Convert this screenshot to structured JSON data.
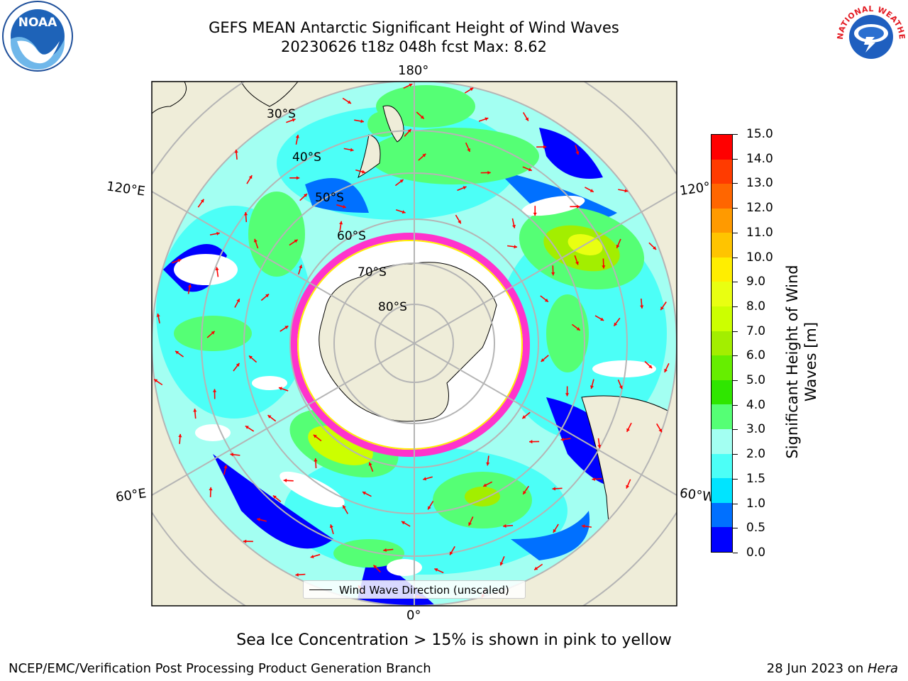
{
  "title_line1": "GEFS MEAN Antarctic Significant Height of Wind Waves",
  "title_line2": "20230626 t18z 048h fcst   Max: 8.62",
  "map": {
    "longitude_labels": {
      "top": "180°",
      "bottom": "0°",
      "upper_left": "120°E",
      "upper_right": "120°",
      "lower_left": "60°E",
      "lower_right": "60°W"
    },
    "latitude_labels": [
      "30°S",
      "40°S",
      "50°S",
      "60°S",
      "70°S",
      "80°S"
    ],
    "colors": {
      "land": "#efedd9",
      "ice_edge": "#ff33cc",
      "arrow": "#ff0000",
      "grid": "#b5b5b5"
    }
  },
  "legend": {
    "label": "Wind Wave Direction (unscaled)"
  },
  "colorbar": {
    "ticks": [
      "0.0",
      "0.5",
      "1.0",
      "1.5",
      "2.0",
      "3.0",
      "4.0",
      "5.0",
      "6.0",
      "7.0",
      "8.0",
      "9.0",
      "10.0",
      "11.0",
      "12.0",
      "13.0",
      "14.0",
      "15.0"
    ],
    "colors": [
      "#0000ff",
      "#0070ff",
      "#00e4ff",
      "#4cfff7",
      "#a3fff2",
      "#55ff75",
      "#2fe600",
      "#66ee00",
      "#a3ee00",
      "#ccff00",
      "#e9ff11",
      "#ffee00",
      "#ffc400",
      "#ff9a00",
      "#ff6600",
      "#ff3b00",
      "#ff0000"
    ],
    "label_line1": "Significant Height of Wind",
    "label_line2": "Waves [m]"
  },
  "note": "Sea Ice Concentration > 15% is shown in pink to yellow",
  "footer": {
    "left": "NCEP/EMC/Verification Post Processing Product Generation Branch",
    "right_prefix": "28 Jun 2023 on ",
    "right_emphasis": "Hera"
  },
  "logos": {
    "left": "NOAA",
    "right": "NATIONAL WEATHER SERVICE"
  }
}
